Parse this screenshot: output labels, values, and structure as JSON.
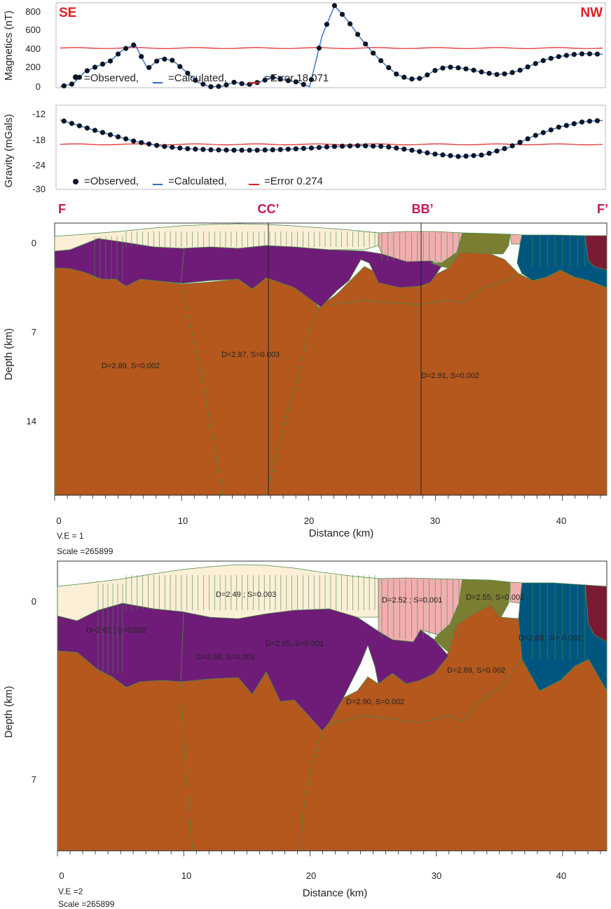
{
  "colors": {
    "observed": "#0d1526",
    "calculated": "#2f6fc0",
    "error": "#e02020",
    "upper_layer": "#fbefd8",
    "sediment": "#6f1c78",
    "basement": "#b4581e",
    "pink": "#f1aeb0",
    "olive": "#7b7e31",
    "blue": "#00567f",
    "maroon": "#7a1a35",
    "outline": "#4d8a4a"
  },
  "chart_data": [
    {
      "type": "line",
      "name": "magnetics",
      "ylabel": "Magnetics (nT)",
      "ylim": [
        0,
        900
      ],
      "yticks": [
        "800",
        "600",
        "400",
        "200",
        "0"
      ],
      "corner_left": "SE",
      "corner_right": "NW",
      "legend": {
        "observed": "=Observed,",
        "calculated": "=Calculated,",
        "error": "=Error 18.071"
      },
      "x_km": [
        0,
        1,
        2,
        3,
        4,
        5,
        6,
        7,
        8,
        9,
        10,
        11,
        12,
        13,
        14,
        15,
        16,
        17,
        18,
        19,
        20,
        21,
        22,
        23,
        24,
        25,
        26,
        27,
        28,
        29,
        30,
        31,
        32,
        33,
        34,
        35,
        36,
        37,
        38,
        39,
        40,
        41,
        42,
        43.5
      ],
      "observed": [
        10,
        40,
        170,
        230,
        280,
        400,
        460,
        200,
        310,
        290,
        180,
        60,
        10,
        15,
        60,
        30,
        60,
        110,
        80,
        60,
        10,
        550,
        870,
        720,
        540,
        380,
        250,
        140,
        90,
        100,
        180,
        220,
        210,
        190,
        160,
        140,
        150,
        190,
        250,
        300,
        330,
        350,
        360,
        355
      ],
      "error_line": 420
    },
    {
      "type": "line",
      "name": "gravity",
      "ylabel": "Gravity (mGals)",
      "ylim": [
        -30,
        -10
      ],
      "yticks": [
        "-12",
        "-18",
        "-24",
        "-30"
      ],
      "legend": {
        "observed": "=Observed,",
        "calculated": "=Calculated,",
        "error": "=Error 0.274"
      },
      "x_km": [
        0,
        2,
        4,
        6,
        8,
        10,
        12,
        14,
        16,
        18,
        20,
        22,
        24,
        26,
        28,
        30,
        32,
        34,
        36,
        38,
        40,
        42,
        43.5
      ],
      "observed": [
        -13.5,
        -15.3,
        -17.0,
        -18.6,
        -19.7,
        -20.3,
        -20.6,
        -20.7,
        -20.7,
        -20.5,
        -20.2,
        -19.8,
        -19.6,
        -19.8,
        -20.6,
        -21.6,
        -22.2,
        -21.8,
        -20.0,
        -17.3,
        -15.2,
        -13.9,
        -13.6
      ],
      "error_line": -19.3
    }
  ],
  "model1": {
    "point_top_left": "F",
    "point_top_right": "F’",
    "markers": [
      {
        "label": "CC’",
        "km": 16.8
      },
      {
        "label": "BB’",
        "km": 28.9
      }
    ],
    "ylabel": "Depth (km)",
    "yticks": [
      {
        "label": "0",
        "km": 0
      },
      {
        "label": "7",
        "km": 7
      },
      {
        "label": "14",
        "km": 14
      }
    ],
    "xlabel": "Distance (km)",
    "xticks": [
      "0",
      "10",
      "20",
      "30",
      "40"
    ],
    "ve": "V.E = 1",
    "scale": "Scale =265899",
    "labels": [
      {
        "text": "D=2.89, S=0.002",
        "km": 6.2,
        "depth": 9.7
      },
      {
        "text": "D=2.87, S=0.003",
        "km": 15.8,
        "depth": 8.8
      },
      {
        "text": "D=2.91, S=0.002",
        "km": 31.2,
        "depth": 10.5
      }
    ]
  },
  "model2": {
    "ylabel": "Depth (km)",
    "yticks": [
      {
        "label": "0",
        "km": 0
      },
      {
        "label": "7",
        "km": 7
      }
    ],
    "xlabel": "Distance (km)",
    "xticks": [
      "0",
      "10",
      "20",
      "30",
      "40"
    ],
    "ve": "V.E =2",
    "scale": "Scale =265899",
    "labels": [
      {
        "text": "D=2.49 ; S=0.003",
        "km": 14.6,
        "depth": -0.15
      },
      {
        "text": "D=2.52 ; S=0.001",
        "km": 28.0,
        "depth": 0
      },
      {
        "text": "D=2.55, S=0.002",
        "km": 34.7,
        "depth": -0.1
      },
      {
        "text": "D=2.67 ; S=0.002",
        "km": 4.9,
        "depth": 2.0
      },
      {
        "text": "D=2.63 ; S= 0.002",
        "km": 40.6,
        "depth": 2.4
      },
      {
        "text": "D=2.68, S=0.001",
        "km": 12.2,
        "depth": 3.6
      },
      {
        "text": "D=2.65, S=0.001",
        "km": 19.1,
        "depth": 2.8
      },
      {
        "text": "D=2.89, S=0.002",
        "km": 33.7,
        "depth": 4.5
      },
      {
        "text": "D=2.90, S=0.002",
        "km": 24.1,
        "depth": 6.3
      }
    ]
  }
}
